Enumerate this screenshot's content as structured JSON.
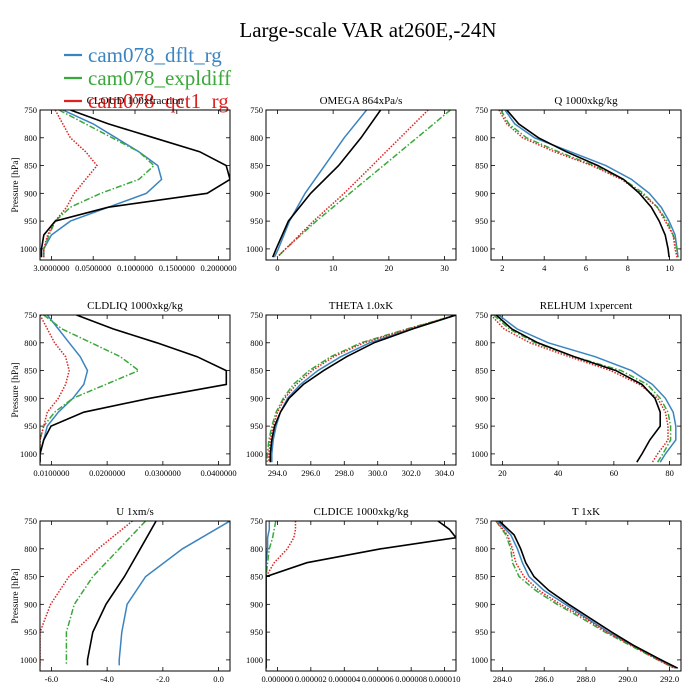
{
  "figure": {
    "title": "Large-scale VAR at260E,-24N",
    "legend": [
      {
        "name": "cam078_dflt_rg",
        "color": "#3b84c0",
        "dash": "solid"
      },
      {
        "name": "cam078_expldiff",
        "color": "#3aa83a",
        "dash": "dashdot"
      },
      {
        "name": "cam078_qct1_rg",
        "color": "#dd2222",
        "dash": "dot"
      }
    ],
    "reference_line": {
      "color": "#000000"
    }
  },
  "chart_data": [
    {
      "type": "line",
      "title": "CLOUD 100xfraction",
      "xticks": [
        "3.0000000",
        "0.0500000",
        "0.1000000",
        "0.1500000",
        "0.2000000"
      ],
      "xlim": [
        3.0,
        3.25
      ],
      "ylabel": "Pressure [hPa]",
      "ylim": [
        750,
        1020
      ],
      "yticks": [
        750,
        800,
        850,
        900,
        950,
        1000
      ],
      "pressure": [
        750,
        775,
        800,
        825,
        850,
        875,
        900,
        925,
        950,
        975,
        1000,
        1015
      ],
      "series": [
        {
          "name": "cam078_dflt_rg",
          "values": [
            3.03,
            3.07,
            3.1,
            3.13,
            3.155,
            3.16,
            3.14,
            3.09,
            3.04,
            3.015,
            3.005,
            3.005
          ]
        },
        {
          "name": "cam078_expldiff",
          "values": [
            3.025,
            3.06,
            3.095,
            3.13,
            3.15,
            3.13,
            3.08,
            3.04,
            3.02,
            3.012,
            3.005,
            3.005
          ]
        },
        {
          "name": "cam078_qct1_rg",
          "values": [
            3.02,
            3.03,
            3.04,
            3.06,
            3.075,
            3.06,
            3.045,
            3.035,
            3.02,
            3.01,
            3.005,
            3.005
          ]
        },
        {
          "name": "reference",
          "values": [
            3.04,
            3.09,
            3.15,
            3.21,
            3.245,
            3.25,
            3.22,
            3.09,
            3.02,
            3.005,
            3.002,
            3.002
          ]
        }
      ]
    },
    {
      "type": "line",
      "title": "OMEGA 864xPa/s",
      "xticks": [
        "0",
        "10",
        "20",
        "30"
      ],
      "xlim": [
        -2,
        32
      ],
      "ylabel": "",
      "ylim": [
        750,
        1020
      ],
      "yticks": [
        750,
        800,
        850,
        900,
        950,
        1000
      ],
      "pressure": [
        750,
        800,
        850,
        900,
        950,
        1000,
        1015
      ],
      "series": [
        {
          "name": "cam078_dflt_rg",
          "values": [
            16.0,
            12.0,
            8.5,
            5.0,
            2.2,
            0.2,
            -0.5
          ]
        },
        {
          "name": "cam078_expldiff",
          "values": [
            31.0,
            25.0,
            19.0,
            13.0,
            7.0,
            1.5,
            0.0
          ]
        },
        {
          "name": "cam078_qct1_rg",
          "values": [
            27.0,
            22.0,
            17.0,
            12.0,
            6.5,
            1.5,
            0.0
          ]
        },
        {
          "name": "reference",
          "values": [
            18.5,
            15.0,
            11.0,
            6.0,
            2.0,
            -0.2,
            -0.8
          ]
        }
      ]
    },
    {
      "type": "line",
      "title": "Q  1000xkg/kg",
      "xticks": [
        "2",
        "4",
        "6",
        "8",
        "10"
      ],
      "xlim": [
        1.8,
        11.4
      ],
      "ylabel": "",
      "ylim": [
        750,
        1020
      ],
      "yticks": [
        750,
        800,
        850,
        900,
        950,
        1000
      ],
      "pressure": [
        750,
        775,
        800,
        825,
        850,
        875,
        900,
        925,
        950,
        975,
        1000,
        1015
      ],
      "series": [
        {
          "name": "cam078_dflt_rg",
          "values": [
            2.5,
            3.0,
            4.0,
            5.8,
            7.6,
            8.9,
            9.8,
            10.4,
            10.8,
            11.1,
            11.2,
            11.25
          ]
        },
        {
          "name": "cam078_expldiff",
          "values": [
            2.3,
            2.7,
            3.6,
            5.2,
            7.0,
            8.5,
            9.5,
            10.2,
            10.7,
            11.0,
            11.2,
            11.25
          ]
        },
        {
          "name": "cam078_qct1_rg",
          "values": [
            2.2,
            2.6,
            3.4,
            5.0,
            6.9,
            8.4,
            9.4,
            10.2,
            10.6,
            11.0,
            11.1,
            11.2
          ]
        },
        {
          "name": "reference",
          "values": [
            2.6,
            3.2,
            4.2,
            5.6,
            7.2,
            8.5,
            9.3,
            9.9,
            10.3,
            10.6,
            10.75,
            10.8
          ]
        }
      ]
    },
    {
      "type": "line",
      "title": "CLDLIQ  1000xkg/kg",
      "xticks": [
        "0.0100000",
        "0.0200000",
        "0.0300000",
        "0.0400000"
      ],
      "xlim": [
        0.0,
        0.052
      ],
      "ylabel": "Pressure [hPa]",
      "ylim": [
        750,
        1020
      ],
      "yticks": [
        750,
        800,
        850,
        900,
        950,
        1000
      ],
      "pressure": [
        750,
        775,
        800,
        825,
        850,
        875,
        900,
        925,
        950,
        975,
        1000,
        1015
      ],
      "series": [
        {
          "name": "cam078_dflt_rg",
          "values": [
            0.002,
            0.005,
            0.008,
            0.011,
            0.013,
            0.012,
            0.009,
            0.005,
            0.002,
            0.001,
            0.0,
            0.0
          ]
        },
        {
          "name": "cam078_expldiff",
          "values": [
            0.001,
            0.006,
            0.014,
            0.022,
            0.027,
            0.018,
            0.009,
            0.004,
            0.001,
            0.0,
            0.0,
            0.0
          ]
        },
        {
          "name": "cam078_qct1_rg",
          "values": [
            0.0,
            0.002,
            0.004,
            0.007,
            0.008,
            0.007,
            0.005,
            0.002,
            0.001,
            0.0,
            0.0,
            0.0
          ]
        },
        {
          "name": "reference",
          "values": [
            0.01,
            0.02,
            0.032,
            0.043,
            0.051,
            0.051,
            0.03,
            0.012,
            0.003,
            0.001,
            0.0,
            0.0
          ]
        }
      ]
    },
    {
      "type": "line",
      "title": "THETA  1.0xK",
      "xticks": [
        "294.0",
        "296.0",
        "298.0",
        "300.0",
        "302.0",
        "304.0"
      ],
      "xlim": [
        292.4,
        305.6
      ],
      "ylabel": "",
      "ylim": [
        750,
        1020
      ],
      "yticks": [
        750,
        800,
        850,
        900,
        950,
        1000
      ],
      "pressure": [
        750,
        775,
        800,
        825,
        850,
        875,
        900,
        925,
        950,
        975,
        1000,
        1015
      ],
      "series": [
        {
          "name": "cam078_dflt_rg",
          "values": [
            305.6,
            302.5,
            299.6,
            297.6,
            296.0,
            294.8,
            293.9,
            293.4,
            293.1,
            292.9,
            292.8,
            292.8
          ]
        },
        {
          "name": "cam078_expldiff",
          "values": [
            305.6,
            302.2,
            299.0,
            296.9,
            295.4,
            294.3,
            293.6,
            293.1,
            292.8,
            292.6,
            292.5,
            292.5
          ]
        },
        {
          "name": "cam078_qct1_rg",
          "values": [
            305.6,
            302.3,
            299.2,
            297.1,
            295.6,
            294.5,
            293.7,
            293.2,
            292.9,
            292.7,
            292.6,
            292.6
          ]
        },
        {
          "name": "reference",
          "values": [
            305.6,
            302.6,
            299.9,
            298.0,
            296.4,
            295.0,
            294.0,
            293.4,
            293.0,
            292.8,
            292.7,
            292.7
          ]
        }
      ]
    },
    {
      "type": "line",
      "title": "RELHUM  1xpercent",
      "xticks": [
        "20",
        "40",
        "60",
        "80"
      ],
      "xlim": [
        20,
        93
      ],
      "ylabel": "",
      "ylim": [
        750,
        1020
      ],
      "yticks": [
        750,
        800,
        850,
        900,
        950,
        1000
      ],
      "pressure": [
        750,
        775,
        800,
        825,
        850,
        875,
        900,
        925,
        950,
        975,
        1000,
        1015
      ],
      "series": [
        {
          "name": "cam078_dflt_rg",
          "values": [
            23,
            30,
            42,
            60,
            74,
            82,
            87,
            90,
            91,
            91,
            87,
            85
          ]
        },
        {
          "name": "cam078_expldiff",
          "values": [
            21,
            27,
            37,
            52,
            70,
            80,
            85,
            88,
            89,
            89,
            86,
            84
          ]
        },
        {
          "name": "cam078_qct1_rg",
          "values": [
            20,
            25,
            35,
            50,
            66,
            77,
            84,
            87,
            88,
            88,
            84,
            82
          ]
        },
        {
          "name": "reference",
          "values": [
            22,
            28,
            38,
            52,
            68,
            78,
            83,
            85,
            85,
            81,
            78,
            76
          ]
        }
      ]
    },
    {
      "type": "line",
      "title": "U  1xm/s",
      "xticks": [
        "-6.0",
        "-4.0",
        "-2.0",
        "0.0"
      ],
      "xlim": [
        -6.2,
        1.0
      ],
      "ylabel": "Pressure [hPa]",
      "ylim": [
        750,
        1020
      ],
      "yticks": [
        750,
        800,
        850,
        900,
        950,
        1000
      ],
      "pressure": [
        750,
        800,
        850,
        900,
        950,
        1000,
        1010
      ],
      "series": [
        {
          "name": "cam078_dflt_rg",
          "values": [
            1.0,
            -0.8,
            -2.2,
            -2.9,
            -3.1,
            -3.2,
            -3.2
          ]
        },
        {
          "name": "cam078_expldiff",
          "values": [
            -2.2,
            -3.2,
            -4.2,
            -4.9,
            -5.2,
            -5.2,
            -5.2
          ]
        },
        {
          "name": "cam078_qct1_rg",
          "values": [
            -2.7,
            -4.0,
            -5.1,
            -5.8,
            -6.2,
            -6.2,
            -6.2
          ]
        },
        {
          "name": "reference",
          "values": [
            -1.8,
            -2.4,
            -3.0,
            -3.7,
            -4.2,
            -4.4,
            -4.4
          ]
        }
      ]
    },
    {
      "type": "line",
      "title": "CLDICE  1000xkg/kg",
      "xticks": [
        "0.000000",
        "0.000002",
        "0.000004",
        "0.000006",
        "0.000008",
        "0.000010"
      ],
      "xlim": [
        0.0,
        1.16e-05
      ],
      "ylabel": "",
      "ylim": [
        750,
        1020
      ],
      "yticks": [
        750,
        800,
        850,
        900,
        950,
        1000
      ],
      "pressure": [
        750,
        765,
        780,
        800,
        825,
        850,
        875,
        900,
        950,
        1000,
        1015
      ],
      "series": [
        {
          "name": "cam078_dflt_rg",
          "values": [
            2e-07,
            2e-07,
            1e-07,
            1e-07,
            0.0,
            0.0,
            0.0,
            0.0,
            0.0,
            0.0,
            0.0
          ]
        },
        {
          "name": "cam078_expldiff",
          "values": [
            6e-07,
            5e-07,
            4e-07,
            2e-07,
            1e-07,
            0.0,
            0.0,
            0.0,
            0.0,
            0.0,
            0.0
          ]
        },
        {
          "name": "cam078_qct1_rg",
          "values": [
            1.8e-06,
            1.8e-06,
            1.7e-06,
            1.3e-06,
            5e-07,
            0.0,
            0.0,
            0.0,
            0.0,
            0.0,
            0.0
          ]
        },
        {
          "name": "reference",
          "values": [
            1.05e-05,
            1.12e-05,
            1.16e-05,
            7e-06,
            2.5e-06,
            0.0,
            0.0,
            0.0,
            0.0,
            0.0,
            0.0
          ]
        }
      ]
    },
    {
      "type": "line",
      "title": "T  1xK",
      "xticks": [
        "284.0",
        "286.0",
        "288.0",
        "290.0",
        "292.0"
      ],
      "xlim": [
        282.3,
        293.8
      ],
      "ylabel": "",
      "ylim": [
        750,
        1020
      ],
      "yticks": [
        750,
        800,
        850,
        900,
        950,
        1000
      ],
      "pressure": [
        750,
        775,
        800,
        825,
        850,
        875,
        900,
        925,
        950,
        975,
        1000,
        1015
      ],
      "series": [
        {
          "name": "cam078_dflt_rg",
          "values": [
            282.7,
            283.5,
            283.9,
            284.2,
            284.6,
            285.5,
            286.8,
            288.1,
            289.4,
            290.9,
            292.5,
            293.5
          ]
        },
        {
          "name": "cam078_expldiff",
          "values": [
            282.6,
            283.2,
            283.5,
            283.6,
            284.0,
            285.0,
            286.3,
            287.8,
            289.2,
            290.8,
            292.4,
            293.4
          ]
        },
        {
          "name": "cam078_qct1_rg",
          "values": [
            282.6,
            283.3,
            283.6,
            283.8,
            284.3,
            285.2,
            286.5,
            288.0,
            289.3,
            290.9,
            292.4,
            293.4
          ]
        },
        {
          "name": "reference",
          "values": [
            282.8,
            283.7,
            284.1,
            284.4,
            284.9,
            285.8,
            287.0,
            288.3,
            289.6,
            291.0,
            292.6,
            293.6
          ]
        }
      ]
    }
  ]
}
